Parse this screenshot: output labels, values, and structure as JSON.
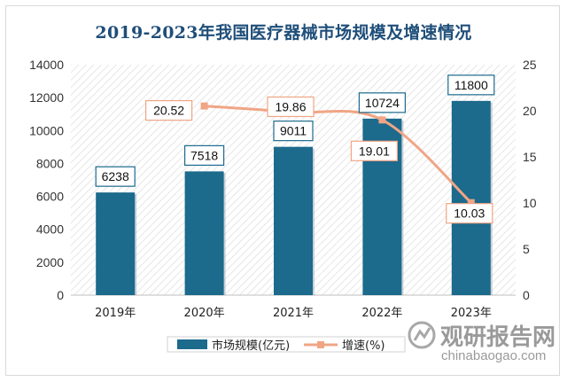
{
  "chart_data": {
    "type": "bar+line",
    "title": "2019-2023年我国医疗器械市场规模及增速情况",
    "categories": [
      "2019年",
      "2020年",
      "2021年",
      "2022年",
      "2023年"
    ],
    "series": [
      {
        "name": "市场规模(亿元)",
        "type": "bar",
        "axis": "left",
        "color": "#1c6a8c",
        "values": [
          6238,
          7518,
          9011,
          10724,
          11800
        ]
      },
      {
        "name": "增速(%)",
        "type": "line",
        "axis": "right",
        "color": "#f0a585",
        "values": [
          null,
          20.52,
          19.86,
          19.01,
          10.03
        ]
      }
    ],
    "y_left": {
      "min": 0,
      "max": 14000,
      "ticks": [
        "0",
        "2000",
        "4000",
        "6000",
        "8000",
        "10000",
        "12000",
        "14000"
      ]
    },
    "y_right": {
      "min": 0,
      "max": 25,
      "ticks": [
        "0",
        "5",
        "10",
        "15",
        "20",
        "25"
      ]
    },
    "bar_labels": [
      "6238",
      "7518",
      "9011",
      "10724",
      "11800"
    ],
    "line_labels": [
      "",
      "20.52",
      "19.86",
      "19.01",
      "10.03"
    ],
    "legend": {
      "position": "bottom"
    },
    "grid": false
  },
  "watermark": {
    "cn": "观研报告网",
    "en": "chinabaogao.com"
  }
}
